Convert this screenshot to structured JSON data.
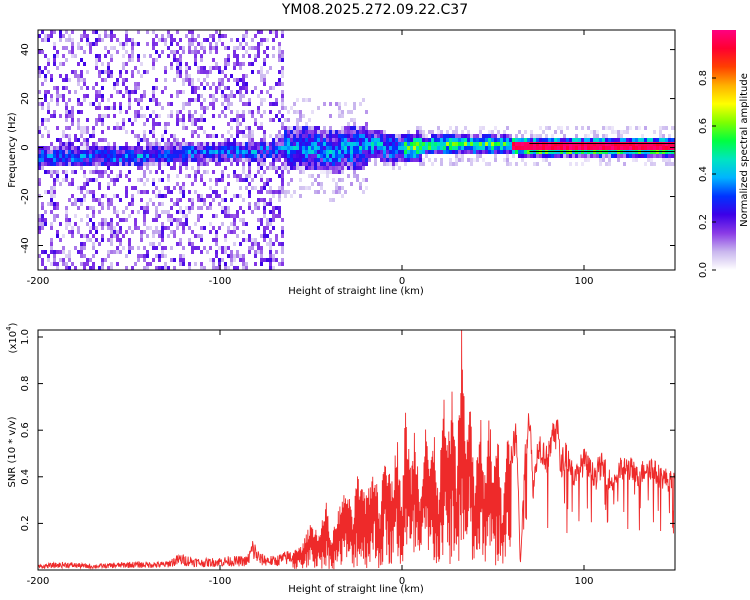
{
  "title": "YM08.2025.272.09.22.C37",
  "chart_data": [
    {
      "type": "heatmap",
      "title": "",
      "xlabel": "Height of straight line (km)",
      "ylabel": "Frequency (Hz)",
      "xlim": [
        -200,
        150
      ],
      "ylim": [
        -50,
        48
      ],
      "xticks": [
        -200,
        -100,
        0,
        100
      ],
      "xtick_labels": [
        "-200",
        "-100",
        "0",
        "100"
      ],
      "yticks": [
        -40,
        -20,
        0,
        20,
        40
      ],
      "ytick_labels": [
        "-40",
        "-20",
        "0",
        "20",
        "40"
      ],
      "colorbar": {
        "label": "Normalized spectral amplitude",
        "range": [
          0,
          1
        ],
        "ticks": [
          0,
          0.2,
          0.4,
          0.6,
          0.8
        ],
        "tick_labels": [
          "0.0",
          "0.2",
          "0.4",
          "0.6",
          "0.8"
        ],
        "colors": [
          "#ffffff",
          "#c9b6ee",
          "#8a3be6",
          "#3c00e8",
          "#0033ff",
          "#00b4ff",
          "#00e5c0",
          "#00ff40",
          "#7fff00",
          "#ffff00",
          "#ffb000",
          "#ff4000",
          "#ff0030",
          "#ff0080"
        ]
      },
      "dominant_frequency_track": {
        "x": [
          -190,
          -160,
          -130,
          -110,
          -90,
          -70,
          -55,
          -40,
          -25,
          -15,
          -5,
          5,
          20,
          35,
          50,
          70,
          90,
          110,
          130,
          150
        ],
        "y": [
          -3,
          -3,
          -2,
          -1,
          -1,
          0,
          1,
          -1,
          1,
          2,
          0,
          1,
          2,
          2,
          2,
          1,
          1,
          1,
          1,
          1
        ]
      },
      "reference_line_frequency": 0
    },
    {
      "type": "line",
      "title": "",
      "xlabel": "Height of straight line (km)",
      "ylabel": "SNR (10 * v/v)",
      "yscale_label": "(x10",
      "yscale_exponent": "4",
      "yscale_suffix": ")",
      "xlim": [
        -200,
        150
      ],
      "ylim": [
        0,
        1.03
      ],
      "xticks": [
        -200,
        -100,
        0,
        100
      ],
      "xtick_labels": [
        "-200",
        "-100",
        "0",
        "100"
      ],
      "yticks": [
        0.2,
        0.4,
        0.6,
        0.8,
        1.0
      ],
      "ytick_labels": [
        "0.2",
        "0.4",
        "0.6",
        "0.8",
        "1.0"
      ],
      "color": "#ee2a2a",
      "series": [
        {
          "name": "SNR",
          "x": [
            -200,
            -185,
            -170,
            -150,
            -130,
            -122,
            -110,
            -95,
            -85,
            -82,
            -78,
            -70,
            -60,
            -55,
            -50,
            -45,
            -42,
            -39,
            -35,
            -30,
            -27,
            -25,
            -20,
            -15,
            -12,
            -10,
            -5,
            -3,
            0,
            2,
            5,
            7,
            10,
            13,
            15,
            18,
            20,
            23,
            25,
            28,
            30,
            32,
            33,
            35,
            37,
            40,
            43,
            45,
            48,
            50,
            53,
            55,
            58,
            60,
            63,
            65,
            68,
            70,
            72,
            75,
            80,
            85,
            87,
            90,
            95,
            100,
            105,
            110,
            115,
            120,
            125,
            130,
            135,
            140,
            145,
            150
          ],
          "values": [
            0.02,
            0.03,
            0.02,
            0.03,
            0.03,
            0.06,
            0.04,
            0.05,
            0.05,
            0.12,
            0.06,
            0.05,
            0.08,
            0.1,
            0.2,
            0.15,
            0.3,
            0.12,
            0.25,
            0.35,
            0.2,
            0.4,
            0.3,
            0.45,
            0.2,
            0.55,
            0.35,
            0.6,
            0.25,
            0.7,
            0.4,
            0.62,
            0.3,
            0.68,
            0.45,
            0.55,
            0.3,
            0.75,
            0.5,
            0.78,
            0.35,
            0.9,
            1.02,
            0.5,
            0.8,
            0.3,
            0.7,
            0.35,
            0.66,
            0.4,
            0.62,
            0.2,
            0.7,
            0.5,
            0.6,
            0.02,
            0.55,
            0.7,
            0.35,
            0.56,
            0.48,
            0.68,
            0.45,
            0.52,
            0.4,
            0.48,
            0.42,
            0.46,
            0.38,
            0.44,
            0.45,
            0.4,
            0.47,
            0.42,
            0.4,
            0.38
          ]
        }
      ]
    }
  ]
}
